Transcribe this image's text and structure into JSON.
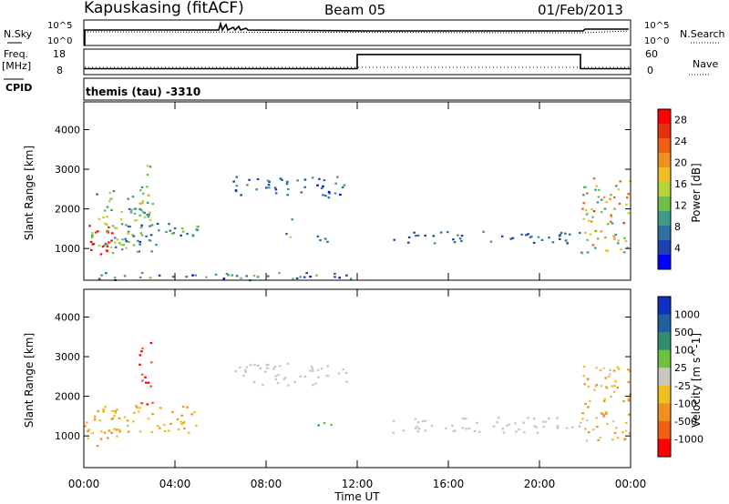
{
  "header": {
    "station": "Kapuskasing (fitACF)",
    "beam": "Beam 05",
    "date": "01/Feb/2013"
  },
  "status_panels": {
    "nsky_label": "N.Sky",
    "nsky_ticks": [
      "10^5",
      "10^0"
    ],
    "nsearch_label": "N.Search",
    "nsearch_ticks": [
      "10^5",
      "10^0"
    ],
    "freq_label_1": "Freq.",
    "freq_label_2": "[MHz]",
    "freq_ticks": [
      "18",
      "8"
    ],
    "nave_label": "Nave",
    "nave_ticks": [
      "60",
      "0"
    ],
    "cpid_label": "CPID",
    "cpid_value": "themis (tau) -3310"
  },
  "chart_data": [
    {
      "type": "heatmap",
      "panel": "power",
      "ylabel": "Slant Range [km]",
      "ylim": [
        200,
        4700
      ],
      "yticks": [
        "1000",
        "2000",
        "3000",
        "4000"
      ],
      "colorbar_label": "Power [dB]",
      "colorbar_ticks": [
        "4",
        "8",
        "12",
        "16",
        "20",
        "24",
        "28"
      ],
      "colorbar_colors": [
        "#0000ff",
        "#1e3fb0",
        "#2e6fa0",
        "#3f9a8a",
        "#6fbf4a",
        "#b8d23a",
        "#f0c020",
        "#f09020",
        "#f06010",
        "#e83010",
        "#ff0000"
      ],
      "echo_bands": [
        {
          "t0": 0.0,
          "t1": 1.2,
          "r0": 800,
          "r1": 1700,
          "values": [
            26,
            30
          ]
        },
        {
          "t0": 0.3,
          "t1": 3.0,
          "r0": 900,
          "r1": 2500,
          "values": [
            8,
            18
          ]
        },
        {
          "t0": 1.5,
          "t1": 5.0,
          "r0": 1100,
          "r1": 1700,
          "values": [
            6,
            14
          ]
        },
        {
          "t0": 2.4,
          "t1": 2.9,
          "r0": 1800,
          "r1": 3400,
          "values": [
            8,
            22
          ]
        },
        {
          "t0": 6.5,
          "t1": 11.5,
          "r0": 2300,
          "r1": 2850,
          "values": [
            4,
            12
          ]
        },
        {
          "t0": 8.8,
          "t1": 9.1,
          "r0": 1300,
          "r1": 1900,
          "values": [
            8,
            16
          ]
        },
        {
          "t0": 9.8,
          "t1": 11.0,
          "r0": 1150,
          "r1": 1350,
          "values": [
            6,
            14
          ]
        },
        {
          "t0": 13.5,
          "t1": 21.8,
          "r0": 1150,
          "r1": 1450,
          "values": [
            4,
            10
          ]
        },
        {
          "t0": 21.8,
          "t1": 24.0,
          "r0": 900,
          "r1": 2800,
          "values": [
            10,
            26
          ]
        },
        {
          "t0": 0.0,
          "t1": 12.0,
          "r0": 220,
          "r1": 420,
          "values": [
            4,
            14
          ]
        }
      ]
    },
    {
      "type": "heatmap",
      "panel": "velocity",
      "ylabel": "Slant Range [km]",
      "ylim": [
        200,
        4700
      ],
      "yticks": [
        "1000",
        "2000",
        "3000",
        "4000"
      ],
      "colorbar_label": "Velocity [m s^-1]",
      "colorbar_ticks": [
        "1000",
        "500",
        "100",
        "25",
        "-25",
        "-100",
        "-500",
        "-1000"
      ],
      "colorbar_colors": [
        "#1030c0",
        "#2060a0",
        "#2f8f70",
        "#70c040",
        "#c8c8c0",
        "#f0c020",
        "#f09020",
        "#f06010",
        "#ff0000"
      ],
      "echo_bands": [
        {
          "t0": 0.0,
          "t1": 1.5,
          "r0": 700,
          "r1": 1800,
          "values": [
            -500,
            -100
          ]
        },
        {
          "t0": 1.2,
          "t1": 5.0,
          "r0": 1100,
          "r1": 1800,
          "values": [
            -500,
            -100
          ]
        },
        {
          "t0": 2.4,
          "t1": 3.0,
          "r0": 1800,
          "r1": 3400,
          "values": [
            -1000,
            -500
          ]
        },
        {
          "t0": 6.5,
          "t1": 11.5,
          "r0": 2300,
          "r1": 2850,
          "values": [
            0,
            0
          ]
        },
        {
          "t0": 10.0,
          "t1": 11.0,
          "r0": 1150,
          "r1": 1350,
          "values": [
            100,
            500
          ]
        },
        {
          "t0": 13.5,
          "t1": 21.8,
          "r0": 1100,
          "r1": 1500,
          "values": [
            0,
            0
          ]
        },
        {
          "t0": 21.8,
          "t1": 24.0,
          "r0": 900,
          "r1": 2800,
          "values": [
            -500,
            0
          ]
        }
      ]
    }
  ],
  "x_axis": {
    "label": "Time UT",
    "ticks": [
      "00:00",
      "04:00",
      "08:00",
      "12:00",
      "16:00",
      "20:00",
      "00:00"
    ]
  },
  "freq_series": [
    {
      "t0": 0,
      "t1": 12,
      "value": 10.5
    },
    {
      "t0": 12,
      "t1": 21.8,
      "value": 16.5
    },
    {
      "t0": 21.8,
      "t1": 24,
      "value": 10.5
    }
  ]
}
